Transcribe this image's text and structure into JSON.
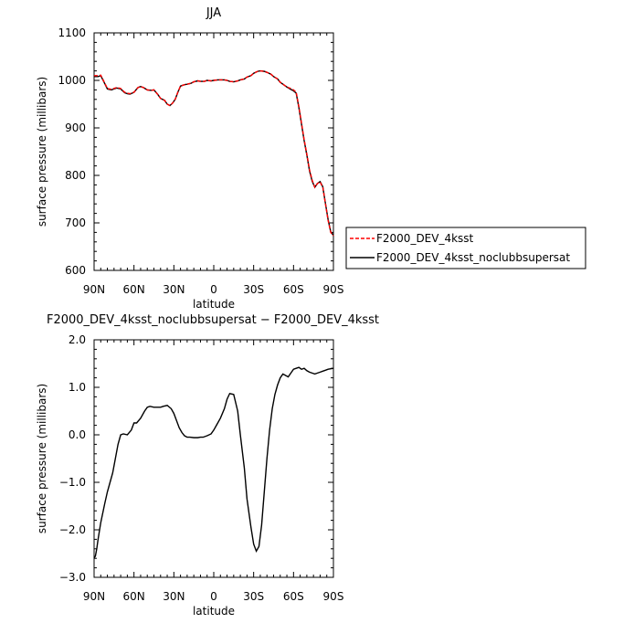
{
  "chart_data": [
    {
      "type": "line",
      "title": "JJA",
      "xlabel": "latitude",
      "ylabel": "surface pressure (millibars)",
      "xlim": [
        -90,
        90
      ],
      "ylim": [
        600,
        1100
      ],
      "x_ticks": [
        -90,
        -60,
        -30,
        0,
        30,
        60,
        90
      ],
      "x_tick_labels": [
        "90N",
        "60N",
        "30N",
        "0",
        "30S",
        "60S",
        "90S"
      ],
      "y_ticks": [
        600,
        700,
        800,
        900,
        1000,
        1100
      ],
      "y_tick_labels": [
        "600",
        "700",
        "800",
        "900",
        "1000",
        "1100"
      ],
      "legend": {
        "position": "right"
      },
      "series": [
        {
          "name": "F2000_DEV_4ksst",
          "color": "#ff0000",
          "dash": "dashed",
          "x": [
            -90,
            -87,
            -85,
            -83,
            -80,
            -77,
            -75,
            -73,
            -70,
            -67,
            -65,
            -63,
            -60,
            -57,
            -55,
            -53,
            -50,
            -47,
            -45,
            -42,
            -40,
            -37,
            -35,
            -33,
            -31,
            -29,
            -27,
            -25,
            -22,
            -20,
            -17,
            -15,
            -12,
            -10,
            -7,
            -5,
            -2,
            0,
            3,
            5,
            8,
            10,
            12,
            15,
            18,
            20,
            23,
            25,
            28,
            30,
            33,
            35,
            38,
            40,
            43,
            45,
            48,
            50,
            53,
            55,
            58,
            60,
            62,
            64,
            66,
            68,
            70,
            72,
            74,
            76,
            78,
            80,
            82,
            84,
            86,
            88,
            90
          ],
          "y": [
            1010,
            1010,
            1011,
            1000,
            983,
            981,
            983,
            985,
            983,
            975,
            973,
            972,
            975,
            985,
            987,
            985,
            980,
            979,
            980,
            970,
            962,
            958,
            950,
            947,
            952,
            960,
            975,
            988,
            991,
            992,
            994,
            997,
            999,
            998,
            998,
            1000,
            999,
            1000,
            1001,
            1001,
            1001,
            1000,
            998,
            997,
            999,
            1001,
            1003,
            1007,
            1010,
            1015,
            1019,
            1020,
            1019,
            1017,
            1013,
            1008,
            1003,
            996,
            990,
            986,
            983,
            980,
            975,
            945,
            910,
            875,
            845,
            812,
            790,
            775,
            783,
            786,
            775,
            740,
            705,
            680,
            673
          ]
        },
        {
          "name": "F2000_DEV_4ksst_noclubbsupersat",
          "color": "#000000",
          "dash": "solid",
          "x": [
            -90,
            -87,
            -85,
            -83,
            -80,
            -77,
            -75,
            -73,
            -70,
            -67,
            -65,
            -63,
            -60,
            -57,
            -55,
            -53,
            -50,
            -47,
            -45,
            -42,
            -40,
            -37,
            -35,
            -33,
            -31,
            -29,
            -27,
            -25,
            -22,
            -20,
            -17,
            -15,
            -12,
            -10,
            -7,
            -5,
            -2,
            0,
            3,
            5,
            8,
            10,
            12,
            15,
            18,
            20,
            23,
            25,
            28,
            30,
            33,
            35,
            38,
            40,
            43,
            45,
            48,
            50,
            53,
            55,
            58,
            60,
            62,
            64,
            66,
            68,
            70,
            72,
            74,
            76,
            78,
            80,
            82,
            84,
            86,
            88,
            90
          ],
          "y": [
            1008,
            1008,
            1010,
            999,
            982,
            980,
            982,
            984,
            982,
            974,
            972,
            971,
            975,
            985,
            987,
            985,
            980,
            979,
            980,
            970,
            962,
            958,
            950,
            947,
            952,
            960,
            975,
            988,
            991,
            992,
            994,
            997,
            999,
            998,
            998,
            1000,
            999,
            1000,
            1001,
            1001,
            1001,
            1000,
            998,
            997,
            999,
            1001,
            1003,
            1007,
            1010,
            1015,
            1019,
            1020,
            1019,
            1017,
            1013,
            1008,
            1003,
            996,
            990,
            986,
            981,
            978,
            973,
            943,
            908,
            873,
            843,
            810,
            788,
            775,
            783,
            787,
            776,
            741,
            707,
            681,
            674
          ]
        }
      ]
    },
    {
      "type": "line",
      "title": "F2000_DEV_4ksst_noclubbsupersat − F2000_DEV_4ksst",
      "xlabel": "latitude",
      "ylabel": "surface pressure (millibars)",
      "xlim": [
        -90,
        90
      ],
      "ylim": [
        -3,
        2
      ],
      "x_ticks": [
        -90,
        -60,
        -30,
        0,
        30,
        60,
        90
      ],
      "x_tick_labels": [
        "90N",
        "60N",
        "30N",
        "0",
        "30S",
        "60S",
        "90S"
      ],
      "y_ticks": [
        -3,
        -2,
        -1,
        0,
        1,
        2
      ],
      "y_tick_labels": [
        "−3.0",
        "−2.0",
        "−1.0",
        "0.0",
        "1.0",
        "2.0"
      ],
      "series": [
        {
          "color": "#000000",
          "dash": "solid",
          "x": [
            -90,
            -89,
            -88,
            -87,
            -85,
            -82,
            -80,
            -78,
            -76,
            -74,
            -72,
            -70,
            -68,
            -65,
            -62,
            -60,
            -58,
            -55,
            -52,
            -50,
            -48,
            -45,
            -42,
            -40,
            -38,
            -35,
            -32,
            -30,
            -28,
            -26,
            -24,
            -22,
            -20,
            -18,
            -15,
            -12,
            -10,
            -8,
            -5,
            -2,
            0,
            2,
            5,
            8,
            10,
            12,
            15,
            18,
            20,
            23,
            25,
            28,
            30,
            32,
            34,
            36,
            38,
            40,
            42,
            44,
            46,
            48,
            50,
            52,
            54,
            56,
            58,
            60,
            62,
            64,
            66,
            68,
            70,
            72,
            74,
            76,
            78,
            80,
            82,
            84,
            86,
            88,
            90
          ],
          "y": [
            -2.6,
            -2.55,
            -2.4,
            -2.2,
            -1.85,
            -1.45,
            -1.2,
            -1.0,
            -0.8,
            -0.5,
            -0.2,
            0.0,
            0.02,
            0.0,
            0.1,
            0.25,
            0.25,
            0.35,
            0.5,
            0.58,
            0.6,
            0.58,
            0.58,
            0.58,
            0.6,
            0.62,
            0.55,
            0.45,
            0.3,
            0.15,
            0.05,
            -0.02,
            -0.05,
            -0.05,
            -0.06,
            -0.06,
            -0.05,
            -0.05,
            -0.02,
            0.02,
            0.1,
            0.2,
            0.35,
            0.55,
            0.75,
            0.87,
            0.85,
            0.5,
            0.0,
            -0.7,
            -1.35,
            -1.95,
            -2.3,
            -2.45,
            -2.35,
            -1.9,
            -1.2,
            -0.5,
            0.1,
            0.55,
            0.85,
            1.05,
            1.2,
            1.28,
            1.25,
            1.22,
            1.3,
            1.38,
            1.4,
            1.42,
            1.38,
            1.4,
            1.35,
            1.32,
            1.3,
            1.28,
            1.3,
            1.32,
            1.34,
            1.36,
            1.38,
            1.39,
            1.4
          ]
        }
      ]
    }
  ]
}
